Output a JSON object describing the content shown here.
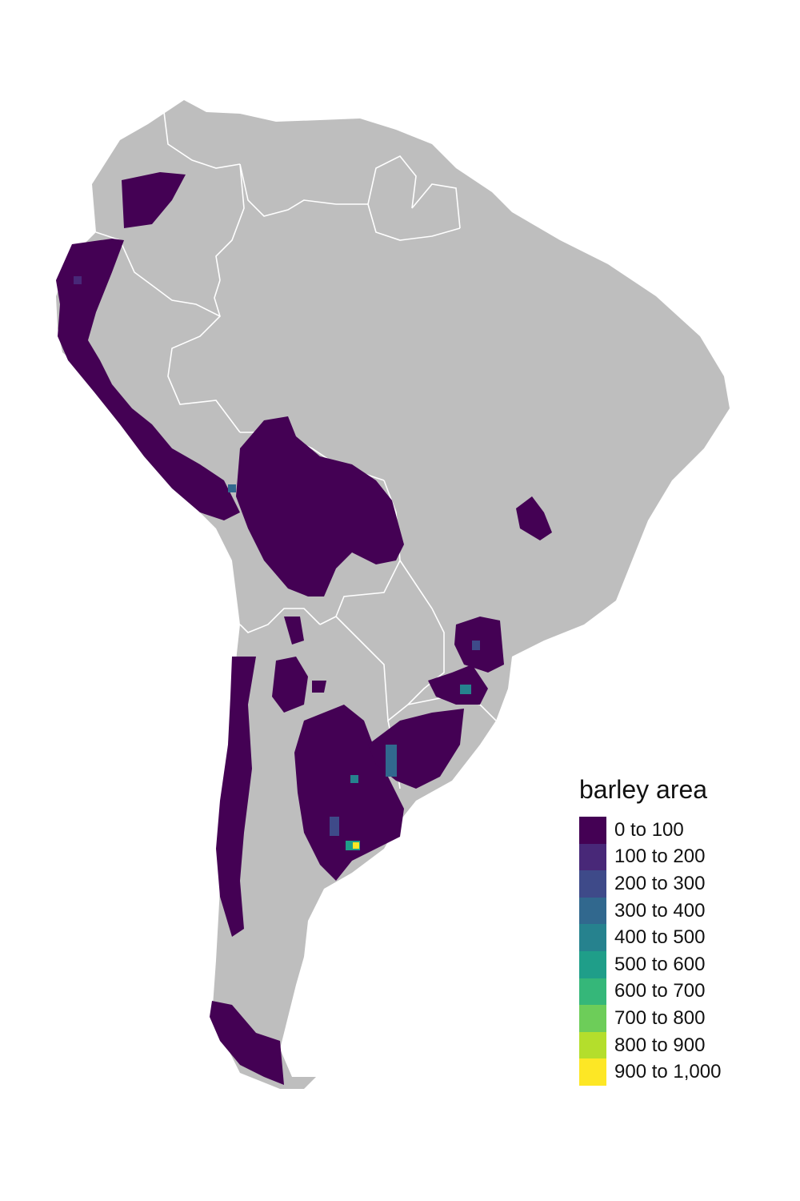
{
  "map": {
    "legend": {
      "title": "barley area",
      "items": [
        {
          "label": "0 to 100",
          "color": "#440154"
        },
        {
          "label": "100 to 200",
          "color": "#482878"
        },
        {
          "label": "200 to 300",
          "color": "#3E4A89"
        },
        {
          "label": "300 to 400",
          "color": "#31688E"
        },
        {
          "label": "400 to 500",
          "color": "#26828E"
        },
        {
          "label": "500 to 600",
          "color": "#1F9E89"
        },
        {
          "label": "600 to 700",
          "color": "#35B779"
        },
        {
          "label": "700 to 800",
          "color": "#6DCD59"
        },
        {
          "label": "800 to 900",
          "color": "#B4DE2C"
        },
        {
          "label": "900 to 1,000",
          "color": "#FDE725"
        }
      ]
    },
    "land_color": "#BEBEBE",
    "border_color": "#FFFFFF"
  }
}
